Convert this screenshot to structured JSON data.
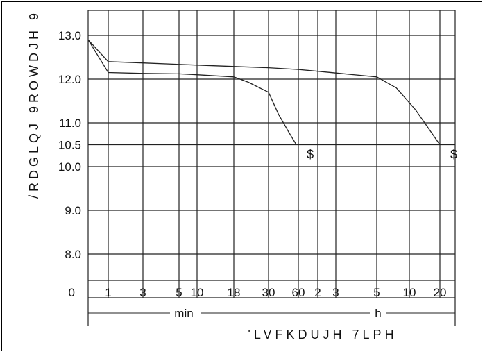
{
  "chart_data": {
    "type": "line",
    "title": "",
    "ylabel": "/RDGLQJ 9ROWDJH 9",
    "xlabel": "'LVFKDUJH 7LPH",
    "y_ticks": [
      "13.0",
      "12.0",
      "11.0",
      "10.5",
      "10.0",
      "9.0",
      "8.0"
    ],
    "y_extra_ticks": [
      "0"
    ],
    "ylim": [
      7.35,
      13.95
    ],
    "x_ticks": [
      {
        "label": "1",
        "unit": "min"
      },
      {
        "label": "3",
        "unit": "min"
      },
      {
        "label": "5",
        "unit": "min"
      },
      {
        "label": "10",
        "unit": "min"
      },
      {
        "label": "18",
        "unit": "min"
      },
      {
        "label": "30",
        "unit": "min"
      },
      {
        "label": "60",
        "unit": "min"
      },
      {
        "label": "2",
        "unit": "h"
      },
      {
        "label": "3",
        "unit": "h"
      },
      {
        "label": "5",
        "unit": "h"
      },
      {
        "label": "10",
        "unit": "h"
      },
      {
        "label": "20",
        "unit": "h"
      }
    ],
    "unit_labels": {
      "min": "min",
      "h": "h"
    },
    "curve_end_labels": [
      "$",
      "$"
    ],
    "series": [
      {
        "points": [
          {
            "x": 0,
            "y": 12.9
          },
          {
            "x": 1,
            "y": 12.15
          },
          {
            "x": 3,
            "y": 12.13
          },
          {
            "x": 5,
            "y": 12.12
          },
          {
            "x": 10,
            "y": 12.1
          },
          {
            "x": 18,
            "y": 12.05
          },
          {
            "x": 23,
            "y": 11.93
          },
          {
            "x": 30,
            "y": 11.7
          },
          {
            "x": 40,
            "y": 11.2
          },
          {
            "x": 50,
            "y": 10.8
          },
          {
            "x": 58,
            "y": 10.5
          }
        ],
        "end_label": "$"
      },
      {
        "points": [
          {
            "x": 0,
            "y": 12.9
          },
          {
            "x": 1,
            "y": 12.4
          },
          {
            "x": 3,
            "y": 12.37
          },
          {
            "x": 10,
            "y": 12.32
          },
          {
            "x": 30,
            "y": 12.26
          },
          {
            "x": 60,
            "y": 12.22
          },
          {
            "x": 120,
            "y": 12.18
          },
          {
            "x": 180,
            "y": 12.14
          },
          {
            "x": 300,
            "y": 12.05
          },
          {
            "x": 480,
            "y": 11.8
          },
          {
            "x": 720,
            "y": 11.3
          },
          {
            "x": 960,
            "y": 10.9
          },
          {
            "x": 1200,
            "y": 10.5
          }
        ],
        "end_label": "$"
      }
    ]
  }
}
